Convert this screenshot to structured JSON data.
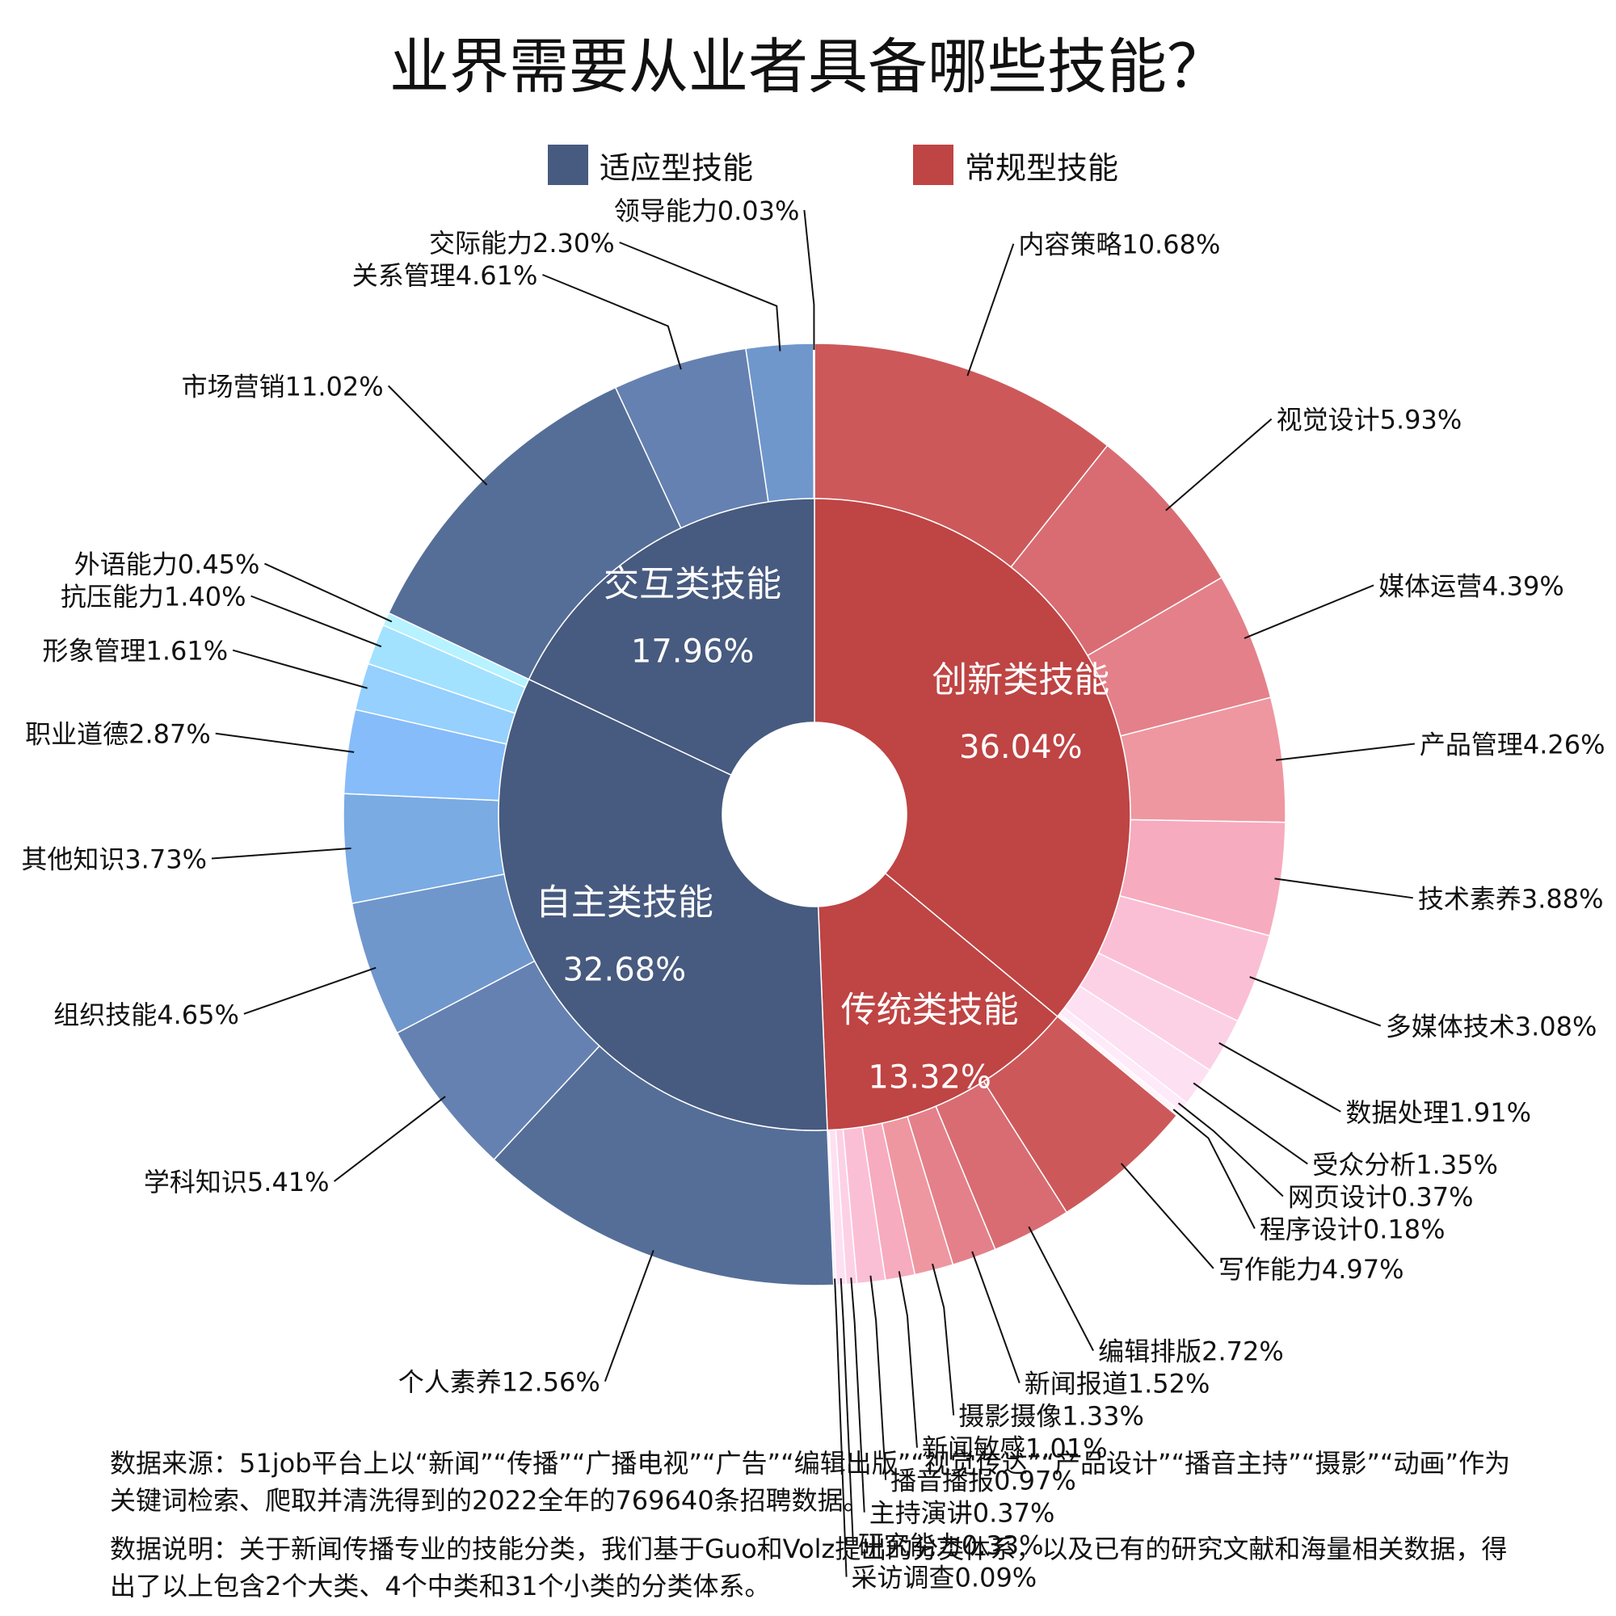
{
  "title": "业界需要从业者具备哪些技能？",
  "legend": [
    {
      "label": "适应型技能",
      "color": "#475a7f"
    },
    {
      "label": "常规型技能",
      "color": "#bf4444"
    }
  ],
  "chart_data": {
    "type": "sunburst",
    "unit": "%",
    "groups": [
      {
        "name": "常规型技能",
        "color": "#bf4444",
        "mid": [
          {
            "name": "创新类技能",
            "value": 36.04,
            "leaves": [
              {
                "name": "内容策略",
                "value": 10.68
              },
              {
                "name": "视觉设计",
                "value": 5.93
              },
              {
                "name": "媒体运营",
                "value": 4.39
              },
              {
                "name": "产品管理",
                "value": 4.26
              },
              {
                "name": "技术素养",
                "value": 3.88
              },
              {
                "name": "多媒体技术",
                "value": 3.08
              },
              {
                "name": "数据处理",
                "value": 1.91
              },
              {
                "name": "受众分析",
                "value": 1.35
              },
              {
                "name": "网页设计",
                "value": 0.37
              },
              {
                "name": "程序设计",
                "value": 0.18
              }
            ]
          },
          {
            "name": "传统类技能",
            "value": 13.32,
            "leaves": [
              {
                "name": "写作能力",
                "value": 4.97
              },
              {
                "name": "编辑排版",
                "value": 2.72
              },
              {
                "name": "新闻报道",
                "value": 1.52
              },
              {
                "name": "摄影摄像",
                "value": 1.33
              },
              {
                "name": "新闻敏感",
                "value": 1.01
              },
              {
                "name": "播音播报",
                "value": 0.97
              },
              {
                "name": "主持演讲",
                "value": 0.37
              },
              {
                "name": "研究能力",
                "value": 0.33
              },
              {
                "name": "采访调查",
                "value": 0.09
              }
            ]
          }
        ]
      },
      {
        "name": "适应型技能",
        "color": "#475a7f",
        "mid": [
          {
            "name": "自主类技能",
            "value": 32.68,
            "leaves": [
              {
                "name": "个人素养",
                "value": 12.56
              },
              {
                "name": "学科知识",
                "value": 5.41
              },
              {
                "name": "组织技能",
                "value": 4.65
              },
              {
                "name": "其他知识",
                "value": 3.73
              },
              {
                "name": "职业道德",
                "value": 2.87
              },
              {
                "name": "形象管理",
                "value": 1.61
              },
              {
                "name": "抗压能力",
                "value": 1.4
              },
              {
                "name": "外语能力",
                "value": 0.45
              }
            ]
          },
          {
            "name": "交互类技能",
            "value": 17.96,
            "leaves": [
              {
                "name": "市场营销",
                "value": 11.02
              },
              {
                "name": "关系管理",
                "value": 4.61
              },
              {
                "name": "交际能力",
                "value": 2.3
              },
              {
                "name": "领导能力",
                "value": 0.03
              }
            ]
          }
        ]
      }
    ]
  },
  "notes": {
    "source": "数据来源：51job平台上以“新闻”“传播”“广播电视”“广告”“编辑出版”“视觉传达”“产品设计”“播音主持”“摄影”“动画”作为关键词检索、爬取并清洗得到的2022全年的769640条招聘数据。",
    "description": "数据说明：关于新闻传播专业的技能分类，我们基于Guo和Volz提出的分类体系，以及已有的研究文献和海量相关数据，得出了以上包含2个大类、4个中类和31个小类的分类体系。"
  }
}
